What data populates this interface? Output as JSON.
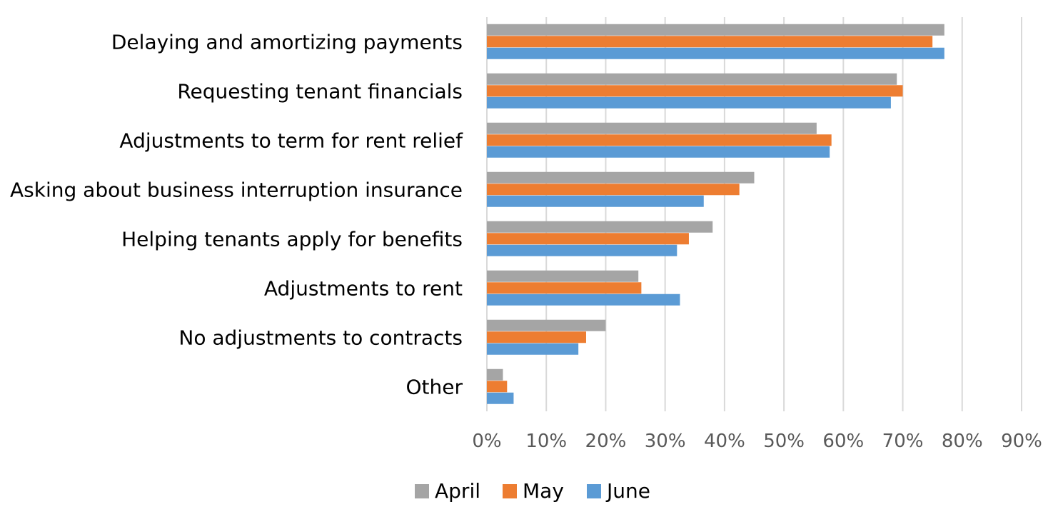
{
  "chart_data": {
    "type": "bar",
    "orientation": "horizontal",
    "title": "",
    "xlabel": "",
    "ylabel": "",
    "categories": [
      "Delaying and amortizing payments",
      "Requesting tenant financials",
      "Adjustments to term for rent relief",
      "Asking about business interruption insurance",
      "Helping tenants apply for benefits",
      "Adjustments to rent",
      "No adjustments to contracts",
      "Other"
    ],
    "series": [
      {
        "name": "April",
        "color": "#A5A5A5",
        "values": [
          77,
          69,
          55.5,
          45,
          38,
          25.5,
          20,
          2.7
        ]
      },
      {
        "name": "May",
        "color": "#ED7D31",
        "values": [
          75,
          70,
          58,
          42.5,
          34,
          26,
          16.7,
          3.4
        ]
      },
      {
        "name": "June",
        "color": "#5B9BD5",
        "values": [
          77,
          68,
          57.7,
          36.5,
          32,
          32.5,
          15.4,
          4.5
        ]
      }
    ],
    "xlim": [
      0,
      90
    ],
    "xticks": [
      0,
      10,
      20,
      30,
      40,
      50,
      60,
      70,
      80,
      90
    ],
    "tick_format": "{v}%",
    "grid": true,
    "legend": "bottom"
  }
}
